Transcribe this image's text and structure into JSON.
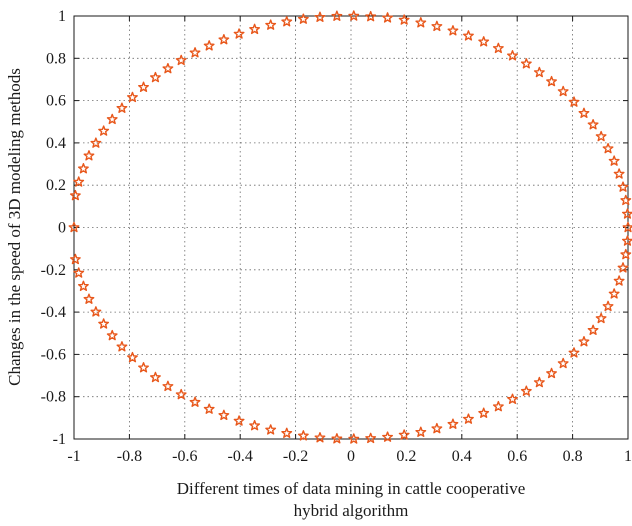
{
  "chart_data": {
    "type": "scatter",
    "title": "",
    "xlabel_lines": [
      "Different times of data mining in cattle cooperative",
      "hybrid algorithm"
    ],
    "ylabel": "Changes in the speed of 3D modeling methods",
    "xlim": [
      -1,
      1
    ],
    "ylim": [
      -1,
      1
    ],
    "xticks": [
      -1,
      -0.8,
      -0.6,
      -0.4,
      -0.2,
      0,
      0.2,
      0.4,
      0.6,
      0.8,
      1
    ],
    "yticks": [
      -1,
      -0.8,
      -0.6,
      -0.4,
      -0.2,
      0,
      0.2,
      0.4,
      0.6,
      0.8,
      1
    ],
    "xtick_labels": [
      "-1",
      "-0.8",
      "-0.6",
      "-0.4",
      "-0.2",
      "0",
      "0.2",
      "0.4",
      "0.6",
      "0.8",
      "1"
    ],
    "ytick_labels": [
      "-1",
      "-0.8",
      "-0.6",
      "-0.4",
      "-0.2",
      "0",
      "0.2",
      "0.4",
      "0.6",
      "0.8",
      "1"
    ],
    "grid": true,
    "marker": "pentagram",
    "marker_color": "#e8581c",
    "series": [
      {
        "x": [
          1.0,
          0.998,
          0.992,
          0.982,
          0.968,
          0.95,
          0.928,
          0.903,
          0.874,
          0.841,
          0.805,
          0.766,
          0.724,
          0.68,
          0.633,
          0.583,
          0.532,
          0.479,
          0.424,
          0.368,
          0.31,
          0.252,
          0.192,
          0.132,
          0.071,
          0.01,
          -0.051,
          -0.112,
          -0.172,
          -0.232,
          -0.29,
          -0.348,
          -0.404,
          -0.459,
          -0.512,
          -0.563,
          -0.613,
          -0.661,
          -0.706,
          -0.749,
          -0.789,
          -0.827,
          -0.862,
          -0.893,
          -0.921,
          -0.946,
          -0.966,
          -0.983,
          -0.995,
          -1.0,
          -0.995,
          -0.983,
          -0.966,
          -0.946,
          -0.921,
          -0.893,
          -0.862,
          -0.827,
          -0.789,
          -0.749,
          -0.706,
          -0.661,
          -0.613,
          -0.563,
          -0.512,
          -0.459,
          -0.404,
          -0.348,
          -0.29,
          -0.232,
          -0.172,
          -0.112,
          -0.051,
          0.01,
          0.071,
          0.132,
          0.192,
          0.252,
          0.31,
          0.368,
          0.424,
          0.479,
          0.532,
          0.583,
          0.633,
          0.68,
          0.724,
          0.766,
          0.805,
          0.841,
          0.874,
          0.903,
          0.928,
          0.95,
          0.968,
          0.982,
          0.992,
          0.998
        ],
        "y": [
          0.0,
          0.064,
          0.128,
          0.191,
          0.253,
          0.314,
          0.373,
          0.43,
          0.486,
          0.54,
          0.593,
          0.643,
          0.69,
          0.733,
          0.774,
          0.812,
          0.847,
          0.878,
          0.906,
          0.93,
          0.951,
          0.968,
          0.981,
          0.991,
          0.997,
          1.0,
          0.999,
          0.994,
          0.985,
          0.973,
          0.957,
          0.937,
          0.915,
          0.888,
          0.859,
          0.826,
          0.79,
          0.751,
          0.709,
          0.663,
          0.615,
          0.564,
          0.511,
          0.456,
          0.399,
          0.339,
          0.278,
          0.215,
          0.151,
          0.0,
          -0.151,
          -0.215,
          -0.278,
          -0.339,
          -0.399,
          -0.456,
          -0.511,
          -0.564,
          -0.615,
          -0.663,
          -0.709,
          -0.751,
          -0.79,
          -0.826,
          -0.859,
          -0.888,
          -0.915,
          -0.937,
          -0.957,
          -0.973,
          -0.985,
          -0.994,
          -0.999,
          -1.0,
          -0.997,
          -0.991,
          -0.981,
          -0.968,
          -0.951,
          -0.93,
          -0.906,
          -0.878,
          -0.847,
          -0.812,
          -0.774,
          -0.733,
          -0.69,
          -0.643,
          -0.593,
          -0.54,
          -0.486,
          -0.43,
          -0.373,
          -0.314,
          -0.253,
          -0.191,
          -0.128,
          -0.064
        ]
      }
    ]
  }
}
